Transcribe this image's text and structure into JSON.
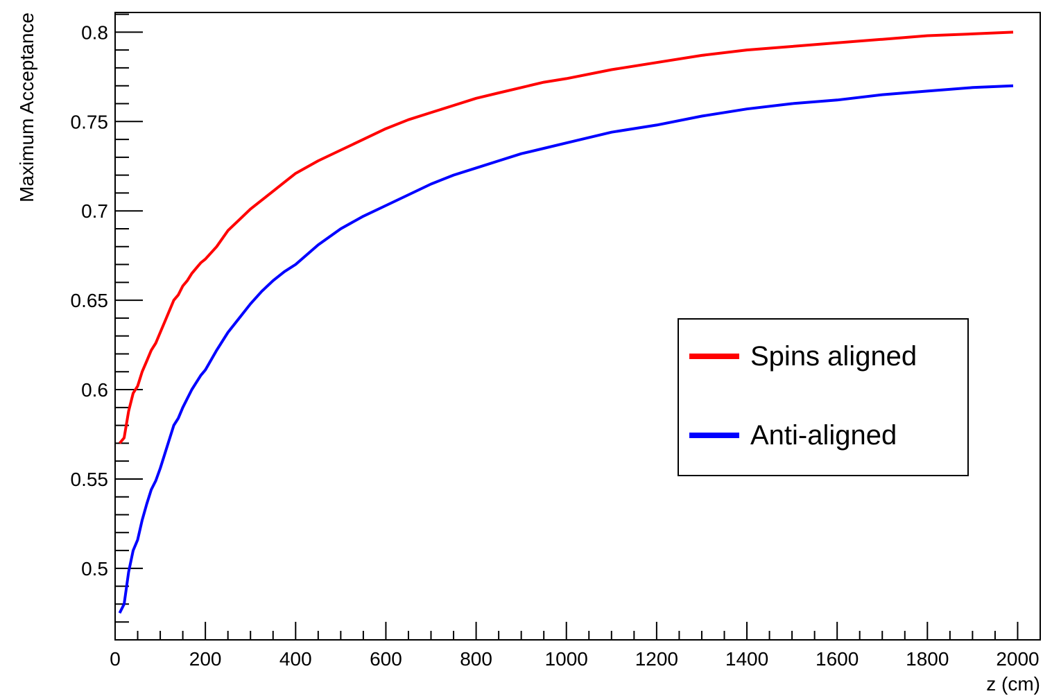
{
  "chart_data": {
    "type": "line",
    "title": "",
    "xlabel": "z (cm)",
    "ylabel": "Maximum Acceptance",
    "xlim": [
      0,
      2050
    ],
    "ylim": [
      0.46,
      0.811
    ],
    "x_ticks": [
      0,
      200,
      400,
      600,
      800,
      1000,
      1200,
      1400,
      1600,
      1800,
      2000
    ],
    "x_tick_labels": [
      "0",
      "200",
      "400",
      "600",
      "800",
      "1000",
      "1200",
      "1400",
      "1600",
      "1800",
      "2000"
    ],
    "y_ticks": [
      0.5,
      0.55,
      0.6,
      0.65,
      0.7,
      0.75,
      0.8
    ],
    "y_tick_labels": [
      "0.5",
      "0.55",
      "0.6",
      "0.65",
      "0.7",
      "0.75",
      "0.8"
    ],
    "grid": false,
    "legend_position": "middle-right",
    "series": [
      {
        "name": "Spins aligned",
        "color": "#ff0000",
        "x": [
          10,
          20,
          30,
          40,
          50,
          60,
          70,
          80,
          90,
          100,
          110,
          120,
          130,
          140,
          150,
          160,
          170,
          180,
          190,
          200,
          225,
          250,
          275,
          300,
          325,
          350,
          375,
          400,
          450,
          500,
          550,
          600,
          650,
          700,
          750,
          800,
          850,
          900,
          950,
          1000,
          1100,
          1200,
          1300,
          1400,
          1500,
          1600,
          1700,
          1800,
          1900,
          1990
        ],
        "y": [
          0.57,
          0.573,
          0.588,
          0.598,
          0.602,
          0.61,
          0.616,
          0.622,
          0.626,
          0.632,
          0.638,
          0.644,
          0.65,
          0.653,
          0.658,
          0.661,
          0.665,
          0.668,
          0.671,
          0.673,
          0.68,
          0.689,
          0.695,
          0.701,
          0.706,
          0.711,
          0.716,
          0.721,
          0.728,
          0.734,
          0.74,
          0.746,
          0.751,
          0.755,
          0.759,
          0.763,
          0.766,
          0.769,
          0.772,
          0.774,
          0.779,
          0.783,
          0.787,
          0.79,
          0.792,
          0.794,
          0.796,
          0.798,
          0.799,
          0.8
        ]
      },
      {
        "name": "Anti-aligned",
        "color": "#0000ff",
        "x": [
          10,
          20,
          30,
          40,
          50,
          60,
          70,
          80,
          90,
          100,
          110,
          120,
          130,
          140,
          150,
          160,
          170,
          180,
          190,
          200,
          225,
          250,
          275,
          300,
          325,
          350,
          375,
          400,
          450,
          500,
          550,
          600,
          650,
          700,
          750,
          800,
          850,
          900,
          950,
          1000,
          1100,
          1200,
          1300,
          1400,
          1500,
          1600,
          1700,
          1800,
          1900,
          1990
        ],
        "y": [
          0.475,
          0.48,
          0.498,
          0.51,
          0.516,
          0.527,
          0.536,
          0.544,
          0.549,
          0.556,
          0.564,
          0.572,
          0.58,
          0.584,
          0.59,
          0.595,
          0.6,
          0.604,
          0.608,
          0.611,
          0.622,
          0.632,
          0.64,
          0.648,
          0.655,
          0.661,
          0.666,
          0.67,
          0.681,
          0.69,
          0.697,
          0.703,
          0.709,
          0.715,
          0.72,
          0.724,
          0.728,
          0.732,
          0.735,
          0.738,
          0.744,
          0.748,
          0.753,
          0.757,
          0.76,
          0.762,
          0.765,
          0.767,
          0.769,
          0.77
        ]
      }
    ]
  }
}
